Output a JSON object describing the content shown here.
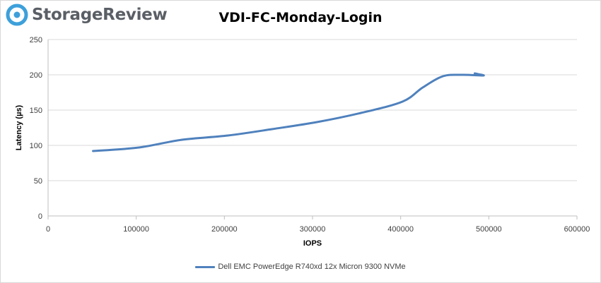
{
  "logo": {
    "text": "StorageReview"
  },
  "chart_data": {
    "type": "line",
    "title": "VDI-FC-Monday-Login",
    "xlabel": "IOPS",
    "ylabel": "Latency (µs)",
    "xlim": [
      0,
      600000
    ],
    "ylim": [
      0,
      250
    ],
    "x_ticks": [
      0,
      100000,
      200000,
      300000,
      400000,
      500000,
      600000
    ],
    "y_ticks": [
      0,
      50,
      100,
      150,
      200,
      250
    ],
    "grid": "horizontal",
    "legend_position": "bottom",
    "series": [
      {
        "name": "Dell EMC PowerEdge R740xd 12x Micron 9300 NVMe",
        "color": "#4f81bd",
        "points": [
          [
            51000,
            92
          ],
          [
            103000,
            97
          ],
          [
            152000,
            108
          ],
          [
            204000,
            114
          ],
          [
            254000,
            123
          ],
          [
            305000,
            133
          ],
          [
            355000,
            146
          ],
          [
            402000,
            162
          ],
          [
            425000,
            182
          ],
          [
            448000,
            198
          ],
          [
            470000,
            200
          ],
          [
            494000,
            199
          ],
          [
            484000,
            202
          ]
        ]
      }
    ]
  }
}
